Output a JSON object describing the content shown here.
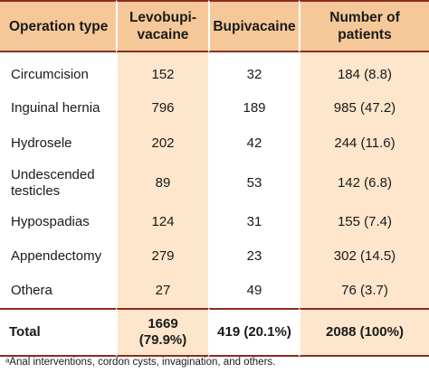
{
  "table": {
    "headers": {
      "operation_type": "Operation type",
      "levobupivacaine_line1": "Levobupi-",
      "levobupivacaine_line2": "vacaine",
      "bupivacaine": "Bupivacaine",
      "patients_line1": "Number of",
      "patients_line2": "patients"
    },
    "rows": [
      {
        "name": "Circumcision",
        "levo": "152",
        "bupi": "32",
        "patients": "184 (8.8)"
      },
      {
        "name": "Inguinal hernia",
        "levo": "796",
        "bupi": "189",
        "patients": "985 (47.2)"
      },
      {
        "name": "Hydrosele",
        "levo": "202",
        "bupi": "42",
        "patients": "244 (11.6)"
      },
      {
        "name_line1": "Undescended",
        "name_line2": "testicles",
        "levo": "89",
        "bupi": "53",
        "patients": "142 (6.8)"
      },
      {
        "name": "Hypospadias",
        "levo": "124",
        "bupi": "31",
        "patients": "155 (7.4)"
      },
      {
        "name": "Appendectomy",
        "levo": "279",
        "bupi": "23",
        "patients": "302 (14.5)"
      },
      {
        "name": "Othera",
        "levo": "27",
        "bupi": "49",
        "patients": "76 (3.7)"
      }
    ],
    "total": {
      "name": "Total",
      "levo_line1": "1669",
      "levo_line2": "(79.9%)",
      "bupi": "419 (20.1%)",
      "patients": "2088 (100%)"
    }
  },
  "footnote": "ᵃAnal interventions, cordon cysts, invagination, and others.",
  "colors": {
    "header_bg": "#f6c899",
    "shaded_bg": "#fde6cc",
    "rule": "#8a2d1e"
  }
}
